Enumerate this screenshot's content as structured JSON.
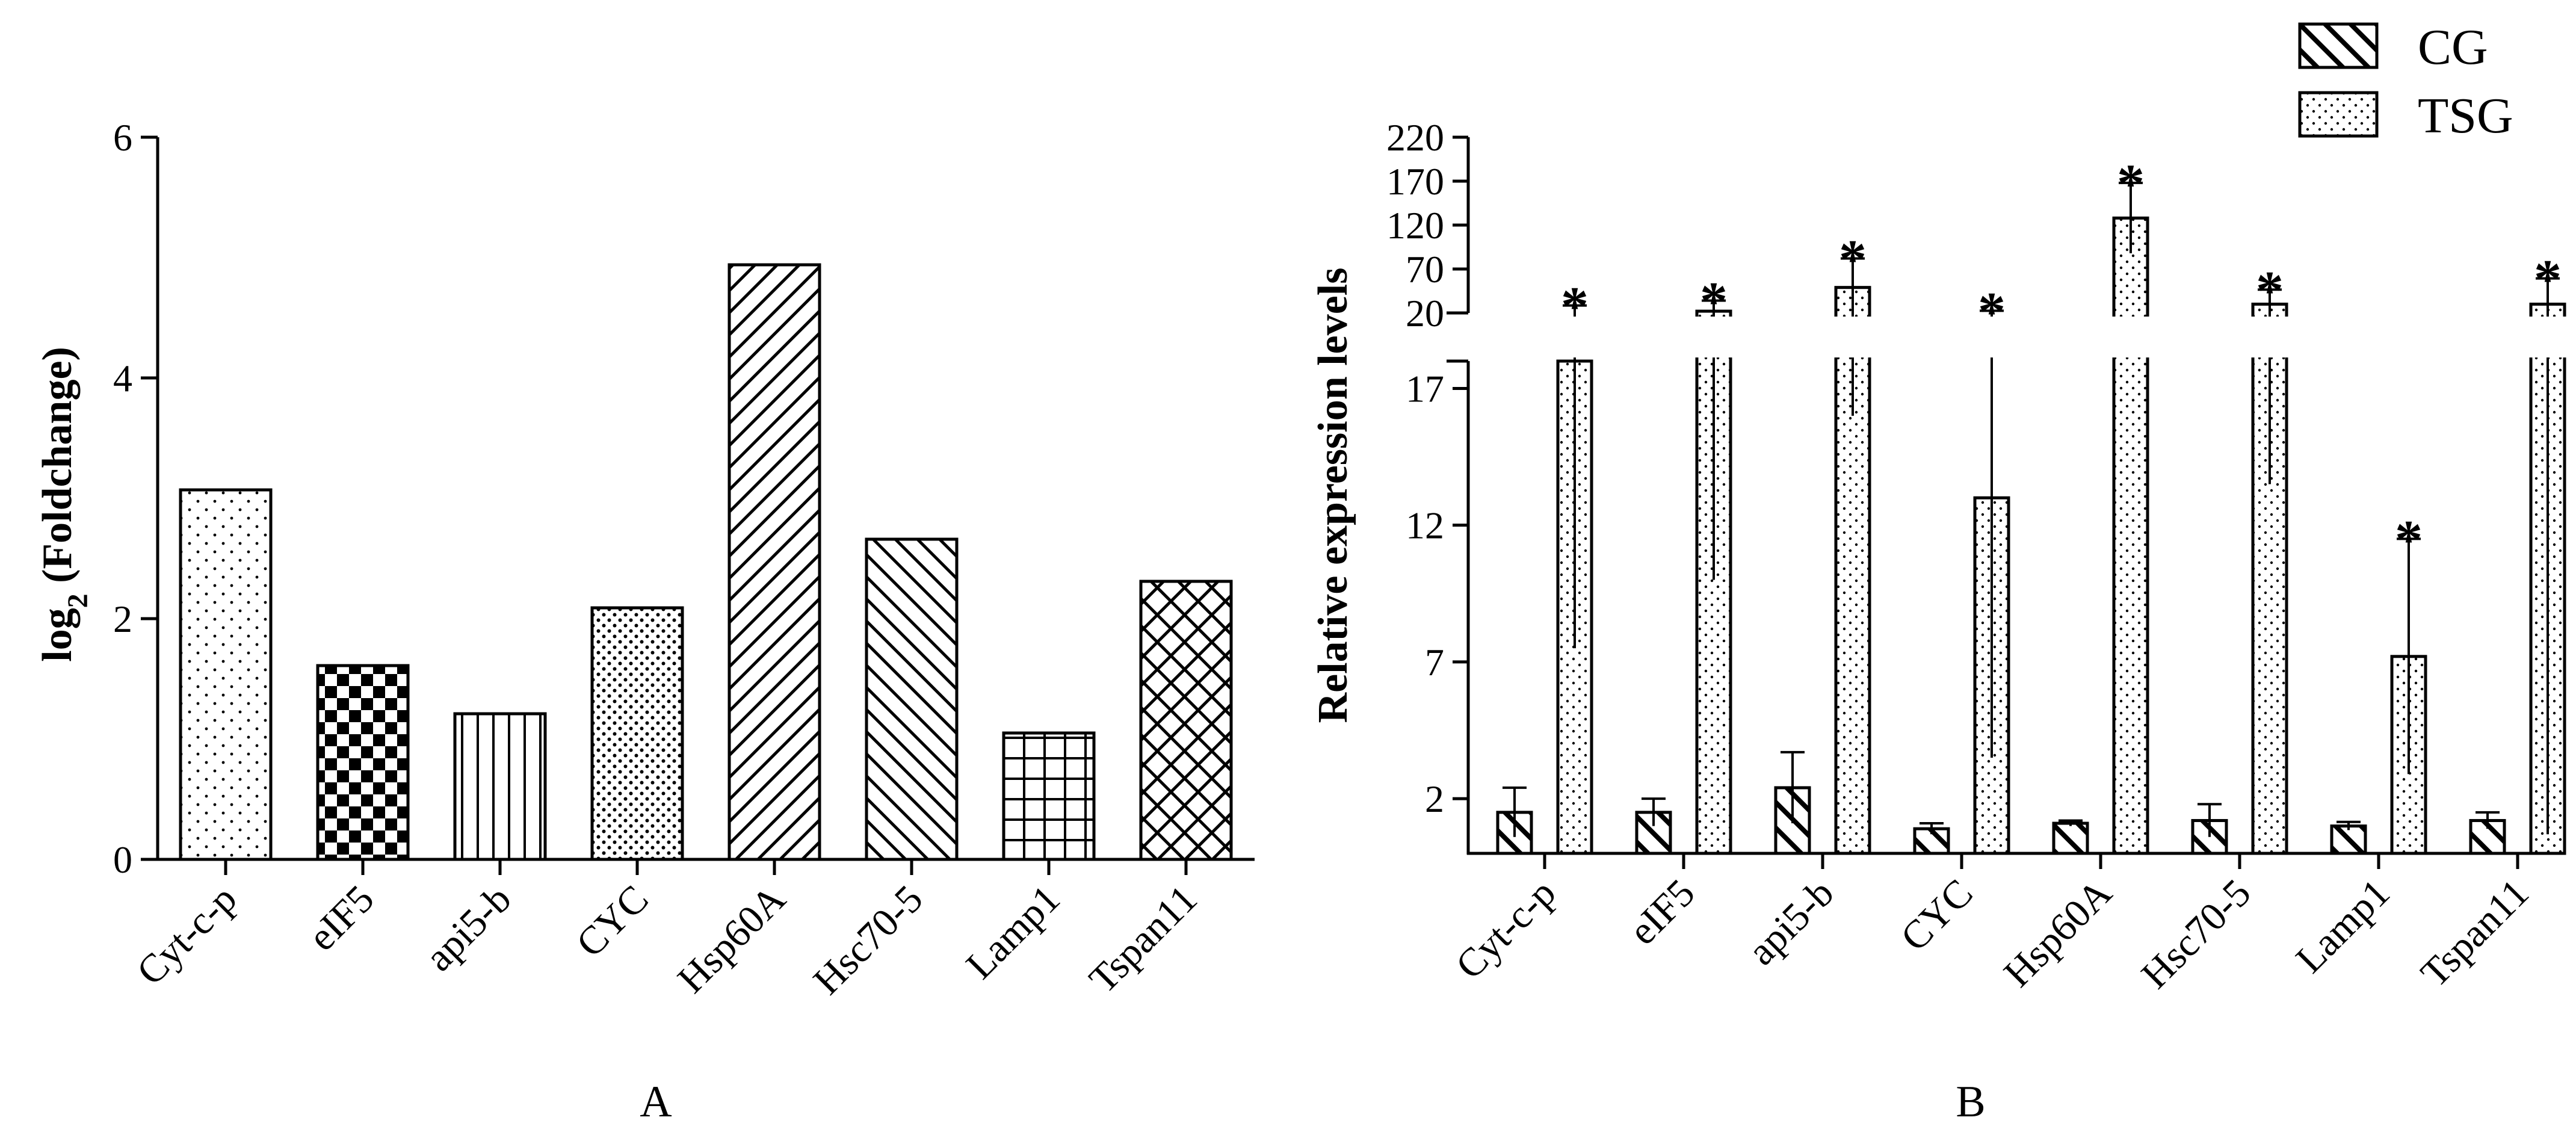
{
  "chart_data": [
    {
      "panel": "A",
      "type": "bar",
      "ylabel": "log2 (Foldchange)",
      "ylabel_parts": [
        "log",
        "2",
        " (Foldchange)"
      ],
      "ylim": [
        0,
        6
      ],
      "yticks": [
        0,
        2,
        4,
        6
      ],
      "grid": false,
      "categories": [
        "Cyt-c-p",
        "eIF5",
        "api5-b",
        "CYC",
        "Hsp60A",
        "Hsc70-5",
        "Lamp1",
        "Tspan11"
      ],
      "values": [
        3.07,
        1.61,
        1.21,
        2.09,
        4.94,
        2.66,
        1.05,
        2.31
      ],
      "patterns": [
        "dots",
        "checker",
        "vlines",
        "dense-dots",
        "diag-right",
        "diag-left",
        "grid",
        "crosshatch"
      ]
    },
    {
      "panel": "B",
      "type": "bar",
      "ylabel": "Relative expression levels",
      "y_axis_broken": true,
      "ylim_lower": [
        0,
        18
      ],
      "yticks_lower": [
        2,
        7,
        12,
        17
      ],
      "ylim_upper": [
        20,
        220
      ],
      "yticks_upper": [
        20,
        70,
        120,
        170,
        220
      ],
      "grid": false,
      "legend": {
        "position": "top-right",
        "entries": [
          "CG",
          "TSG"
        ]
      },
      "categories": [
        "Cyt-c-p",
        "eIF5",
        "api5-b",
        "CYC",
        "Hsp60A",
        "Hsc70-5",
        "Lamp1",
        "Tspan11"
      ],
      "series": [
        {
          "name": "CG",
          "pattern": "hatch",
          "values": [
            1.5,
            1.5,
            2.4,
            0.9,
            1.1,
            1.2,
            1.0,
            1.2
          ],
          "error": [
            0.9,
            0.5,
            1.3,
            0.2,
            0.1,
            0.6,
            0.15,
            0.3
          ]
        },
        {
          "name": "TSG",
          "pattern": "dots",
          "values": [
            18,
            22,
            49,
            13,
            128,
            30,
            7.2,
            30
          ],
          "error": [
            10.5,
            12,
            33,
            9.5,
            40,
            16.5,
            4.3,
            29.3
          ]
        }
      ],
      "significance": [
        "*",
        "*",
        "*",
        "*",
        "*",
        "*",
        "*",
        "*"
      ]
    }
  ],
  "labels": {
    "panel_a": "A",
    "panel_b": "B"
  }
}
